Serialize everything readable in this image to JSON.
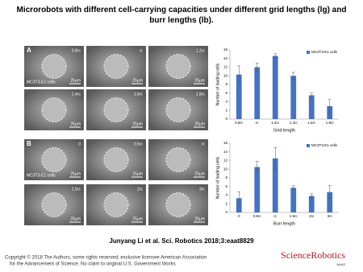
{
  "header": {
    "title": "Microrobots with different cell-carrying capacities under different grid lengths (lg) and burr lengths (lb)."
  },
  "panels": [
    {
      "label": "A",
      "cell_label": "MC3T3-E1 cells",
      "images": [
        {
          "label": "0.8rc",
          "scale": "25μm"
        },
        {
          "label": "rc",
          "scale": "25μm"
        },
        {
          "label": "1.2rc",
          "scale": "25μm"
        },
        {
          "label": "1.4rc",
          "scale": "25μm"
        },
        {
          "label": "1.6rc",
          "scale": "25μm"
        },
        {
          "label": "1.8rc",
          "scale": "25μm"
        }
      ]
    },
    {
      "label": "B",
      "cell_label": "MC3T3-E1 cells",
      "images": [
        {
          "label": "0",
          "scale": "25μm"
        },
        {
          "label": "0.5rc",
          "scale": "25μm"
        },
        {
          "label": "rc",
          "scale": "25μm"
        },
        {
          "label": "1.5rc",
          "scale": "25μm"
        },
        {
          "label": "2rc",
          "scale": "25μm"
        },
        {
          "label": "3rc",
          "scale": "25μm"
        }
      ]
    }
  ],
  "chart_data": [
    {
      "type": "bar",
      "x_label": "Grid length",
      "y_label": "Number of loading cells",
      "categories": [
        "0.8rc",
        "rc",
        "1.2rc",
        "1.4rc",
        "1.6rc",
        "1.8rc"
      ],
      "series": [
        {
          "name": "MC3T3-E1 cells",
          "color": "#4472c4",
          "values": [
            10.3,
            12,
            14.6,
            10,
            5.5,
            3
          ],
          "errors": [
            2,
            1,
            0.5,
            0.8,
            0.5,
            1.5
          ]
        }
      ],
      "ylim": [
        0,
        16
      ],
      "yticks": [
        0,
        2,
        4,
        6,
        8,
        10,
        12,
        14,
        16
      ],
      "legend": "upper-right"
    },
    {
      "type": "bar",
      "x_label": "Burr length",
      "y_label": "Number of loading cells",
      "categories": [
        "0",
        "0.5rc",
        "rc",
        "1.5rc",
        "2rc",
        "3rc"
      ],
      "series": [
        {
          "name": "MC3T3-E1 cells",
          "color": "#4472c4",
          "values": [
            3.3,
            10.5,
            12.5,
            5.7,
            3.8,
            4.7
          ],
          "errors": [
            1.5,
            1.3,
            2.5,
            0.5,
            0.5,
            1.5
          ]
        }
      ],
      "ylim": [
        0,
        16
      ],
      "yticks": [
        0,
        2,
        4,
        6,
        8,
        10,
        12,
        14,
        16
      ],
      "legend": "upper-right"
    }
  ],
  "footer": {
    "citation": "Junyang Li et al. Sci. Robotics 2018;3:eaat8829",
    "copyright_1": "Copyright © 2018 The Authors, some rights reserved; exclusive licensee American Association",
    "copyright_2": "for the Advancement of Science. No claim to original U.S. Government Works",
    "logo": "ScienceRobotics",
    "logo_sub": "AAAS"
  }
}
